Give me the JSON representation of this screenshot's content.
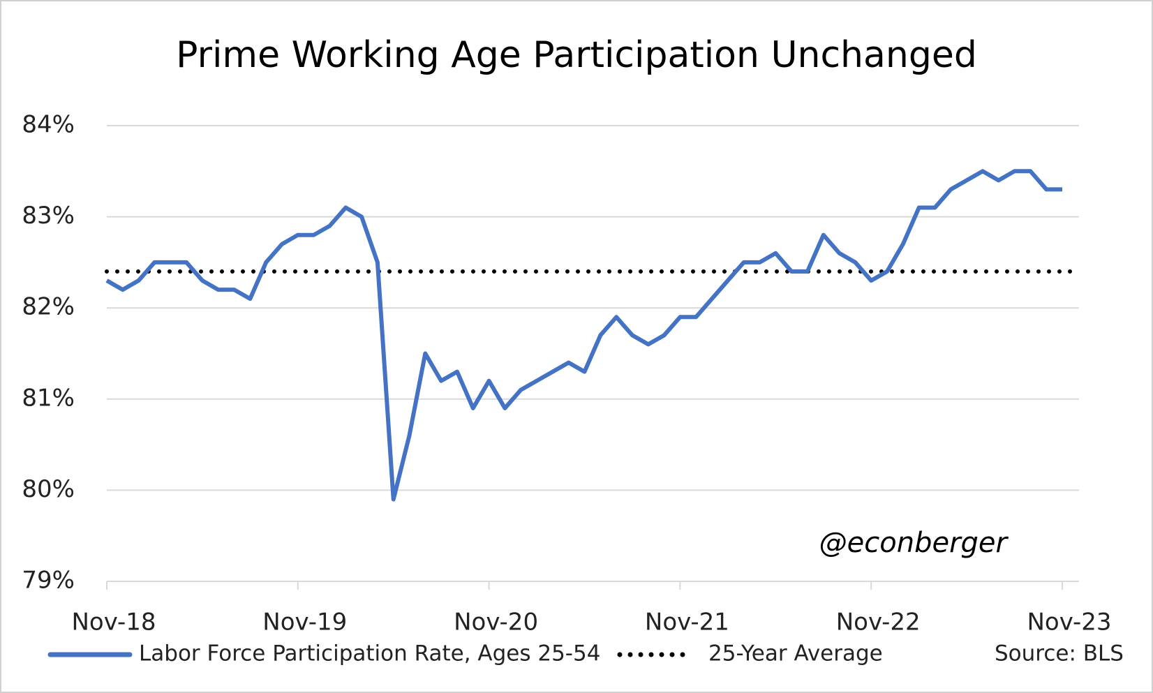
{
  "chart_data": {
    "type": "line",
    "title": "Prime Working Age Participation Unchanged",
    "categories": [
      "Nov-18",
      null,
      null,
      null,
      null,
      null,
      null,
      null,
      null,
      null,
      null,
      null,
      "Nov-19",
      null,
      null,
      null,
      null,
      null,
      null,
      null,
      null,
      null,
      null,
      null,
      "Nov-20",
      null,
      null,
      null,
      null,
      null,
      null,
      null,
      null,
      null,
      null,
      null,
      "Nov-21",
      null,
      null,
      null,
      null,
      null,
      null,
      null,
      null,
      null,
      null,
      null,
      "Nov-22",
      null,
      null,
      null,
      null,
      null,
      null,
      null,
      null,
      null,
      null,
      null,
      "Nov-23"
    ],
    "series": [
      {
        "name": "Labor Force Participation Rate, Ages 25-54",
        "color": "#4472c4",
        "values": [
          82.3,
          82.2,
          82.3,
          82.5,
          82.5,
          82.5,
          82.3,
          82.2,
          82.2,
          82.1,
          82.5,
          82.7,
          82.8,
          82.8,
          82.9,
          83.1,
          83.0,
          82.5,
          79.9,
          80.6,
          81.5,
          81.2,
          81.3,
          80.9,
          81.2,
          80.9,
          81.1,
          81.2,
          81.3,
          81.4,
          81.3,
          81.7,
          81.9,
          81.7,
          81.6,
          81.7,
          81.9,
          81.9,
          82.1,
          82.3,
          82.5,
          82.5,
          82.6,
          82.4,
          82.4,
          82.8,
          82.6,
          82.5,
          82.3,
          82.4,
          82.7,
          83.1,
          83.1,
          83.3,
          83.4,
          83.5,
          83.4,
          83.5,
          83.5,
          83.3,
          83.3
        ]
      }
    ],
    "average": {
      "name": "25-Year Average",
      "value": 82.4,
      "color": "#000000"
    },
    "ylim": [
      79,
      84
    ],
    "yticks": [
      {
        "value": 79,
        "label": "79%"
      },
      {
        "value": 80,
        "label": "80%"
      },
      {
        "value": 81,
        "label": "81%"
      },
      {
        "value": 82,
        "label": "82%"
      },
      {
        "value": 83,
        "label": "83%"
      },
      {
        "value": 84,
        "label": "84%"
      }
    ],
    "grid": true,
    "annotation": "@econberger",
    "source": "Source: BLS"
  }
}
